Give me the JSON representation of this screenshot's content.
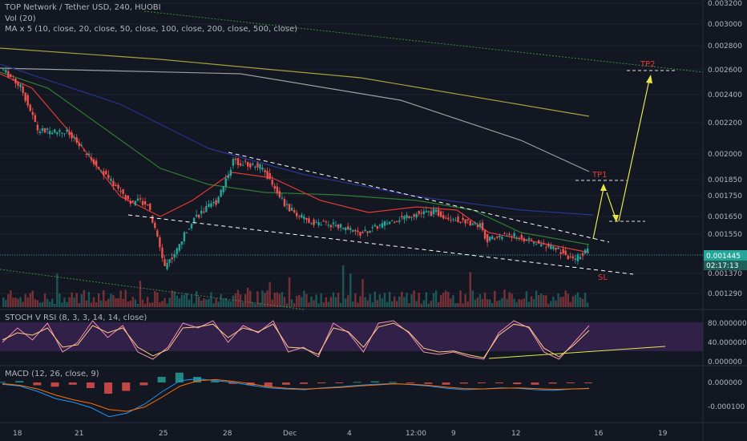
{
  "header": {
    "symbol_line": "TOP Network / Tether USD, 240, HUOBI",
    "vol_label": "Vol (20)",
    "ma_label": "MA x 5 (10, close, 20, close, 50, close, 100, close, 200, close, 500, close)"
  },
  "stoch_label": "STOCH V RSI (8, 3, 3, 14, 14, close)",
  "macd_label": "MACD (12, 26, close, 9)",
  "colors": {
    "background": "#131722",
    "up": "#26a69a",
    "down": "#ef5350",
    "ma10": "#ff9800",
    "ma20": "#e53935",
    "ma50": "#2e7d32",
    "ma100": "#283593",
    "ma200": "#9e9e9e",
    "ma500": "#a5a23a",
    "annotation_yellow": "#e6e64c",
    "annotation_red": "#e53935",
    "stoch_band": "#4a2a6a",
    "macd_line": "#2196f3",
    "signal_line": "#ff6d00"
  },
  "chart_data": [
    {
      "type": "candlestick",
      "pane": "price",
      "ylim": [
        0.00122,
        0.0032
      ],
      "y_ticks": [
        "0.003200",
        "0.003000",
        "0.002800",
        "0.002600",
        "0.002400",
        "0.002200",
        "0.002000",
        "0.001850",
        "0.001750",
        "0.001650",
        "0.001550",
        "0.001445",
        "0.001370",
        "0.001290"
      ],
      "current_price": "0.001445",
      "countdown": "02:17:13",
      "x_ticks": [
        "18",
        "21",
        "25",
        "28",
        "Dec",
        "4",
        "12:00",
        "9",
        "12",
        "16",
        "19"
      ],
      "annotations": [
        "TP2",
        "TP1",
        "SL"
      ],
      "trend": [
        {
          "x": 0,
          "y": 0.0026
        },
        {
          "x": 15,
          "y": 0.00246
        },
        {
          "x": 30,
          "y": 0.00215
        },
        {
          "x": 55,
          "y": 0.00214
        },
        {
          "x": 85,
          "y": 0.0019
        },
        {
          "x": 110,
          "y": 0.00172
        },
        {
          "x": 125,
          "y": 0.00172
        },
        {
          "x": 140,
          "y": 0.0014
        },
        {
          "x": 150,
          "y": 0.00146
        },
        {
          "x": 165,
          "y": 0.00164
        },
        {
          "x": 185,
          "y": 0.00172
        },
        {
          "x": 200,
          "y": 0.00196
        },
        {
          "x": 225,
          "y": 0.00192
        },
        {
          "x": 245,
          "y": 0.0017
        },
        {
          "x": 265,
          "y": 0.00162
        },
        {
          "x": 290,
          "y": 0.0016
        },
        {
          "x": 310,
          "y": 0.00155
        },
        {
          "x": 335,
          "y": 0.00162
        },
        {
          "x": 355,
          "y": 0.00166
        },
        {
          "x": 375,
          "y": 0.00167
        },
        {
          "x": 395,
          "y": 0.00163
        },
        {
          "x": 415,
          "y": 0.0016
        },
        {
          "x": 420,
          "y": 0.00152
        },
        {
          "x": 440,
          "y": 0.00155
        },
        {
          "x": 460,
          "y": 0.00151
        },
        {
          "x": 480,
          "y": 0.00148
        },
        {
          "x": 495,
          "y": 0.00142
        },
        {
          "x": 510,
          "y": 0.00148
        }
      ]
    },
    {
      "type": "line",
      "pane": "stoch_rsi",
      "ylim": [
        0,
        100
      ],
      "y_ticks": [
        "80.000000",
        "40.000000",
        "0.000000"
      ],
      "series": [
        {
          "values": [
            40,
            70,
            45,
            80,
            20,
            40,
            85,
            50,
            75,
            20,
            5,
            30,
            80,
            70,
            85,
            40,
            75,
            60,
            85,
            20,
            30,
            10,
            80,
            60,
            20,
            80,
            85,
            60,
            20,
            15,
            20,
            10,
            5,
            60,
            85,
            70,
            20,
            5,
            40,
            75
          ]
        },
        {
          "values": [
            45,
            60,
            55,
            70,
            30,
            35,
            75,
            60,
            70,
            30,
            12,
            25,
            70,
            72,
            78,
            50,
            70,
            62,
            78,
            30,
            28,
            15,
            70,
            62,
            30,
            72,
            80,
            62,
            28,
            20,
            22,
            14,
            8,
            55,
            78,
            72,
            28,
            10,
            35,
            65
          ]
        }
      ]
    },
    {
      "type": "histogram",
      "pane": "macd",
      "y_ticks": [
        "0.000000",
        "-0.000100"
      ],
      "series": [
        {
          "values": [
            2,
            5,
            -10,
            -15,
            -8,
            -20,
            -40,
            -30,
            -10,
            20,
            35,
            20,
            5,
            -5,
            -10,
            -15,
            -8,
            -5,
            -3,
            -2,
            2,
            4,
            2,
            -2,
            -5,
            -8,
            -4,
            -2,
            -3,
            -6,
            -8,
            -4,
            -2,
            -1
          ]
        },
        {
          "values": [
            -5,
            -10,
            -25,
            -45,
            -55,
            -70,
            -95,
            -85,
            -60,
            -25,
            5,
            10,
            5,
            0,
            -8,
            -15,
            -18,
            -20,
            -15,
            -12,
            -8,
            -5,
            -3,
            -6,
            -10,
            -16,
            -20,
            -18,
            -15,
            -16,
            -20,
            -22,
            -18,
            -16
          ]
        },
        {
          "values": [
            -3,
            -8,
            -18,
            -35,
            -48,
            -58,
            -75,
            -80,
            -68,
            -40,
            -10,
            5,
            8,
            3,
            -4,
            -12,
            -16,
            -18,
            -16,
            -14,
            -10,
            -7,
            -4,
            -5,
            -8,
            -13,
            -17,
            -18,
            -16,
            -15,
            -17,
            -19,
            -18,
            -17
          ]
        }
      ]
    }
  ]
}
